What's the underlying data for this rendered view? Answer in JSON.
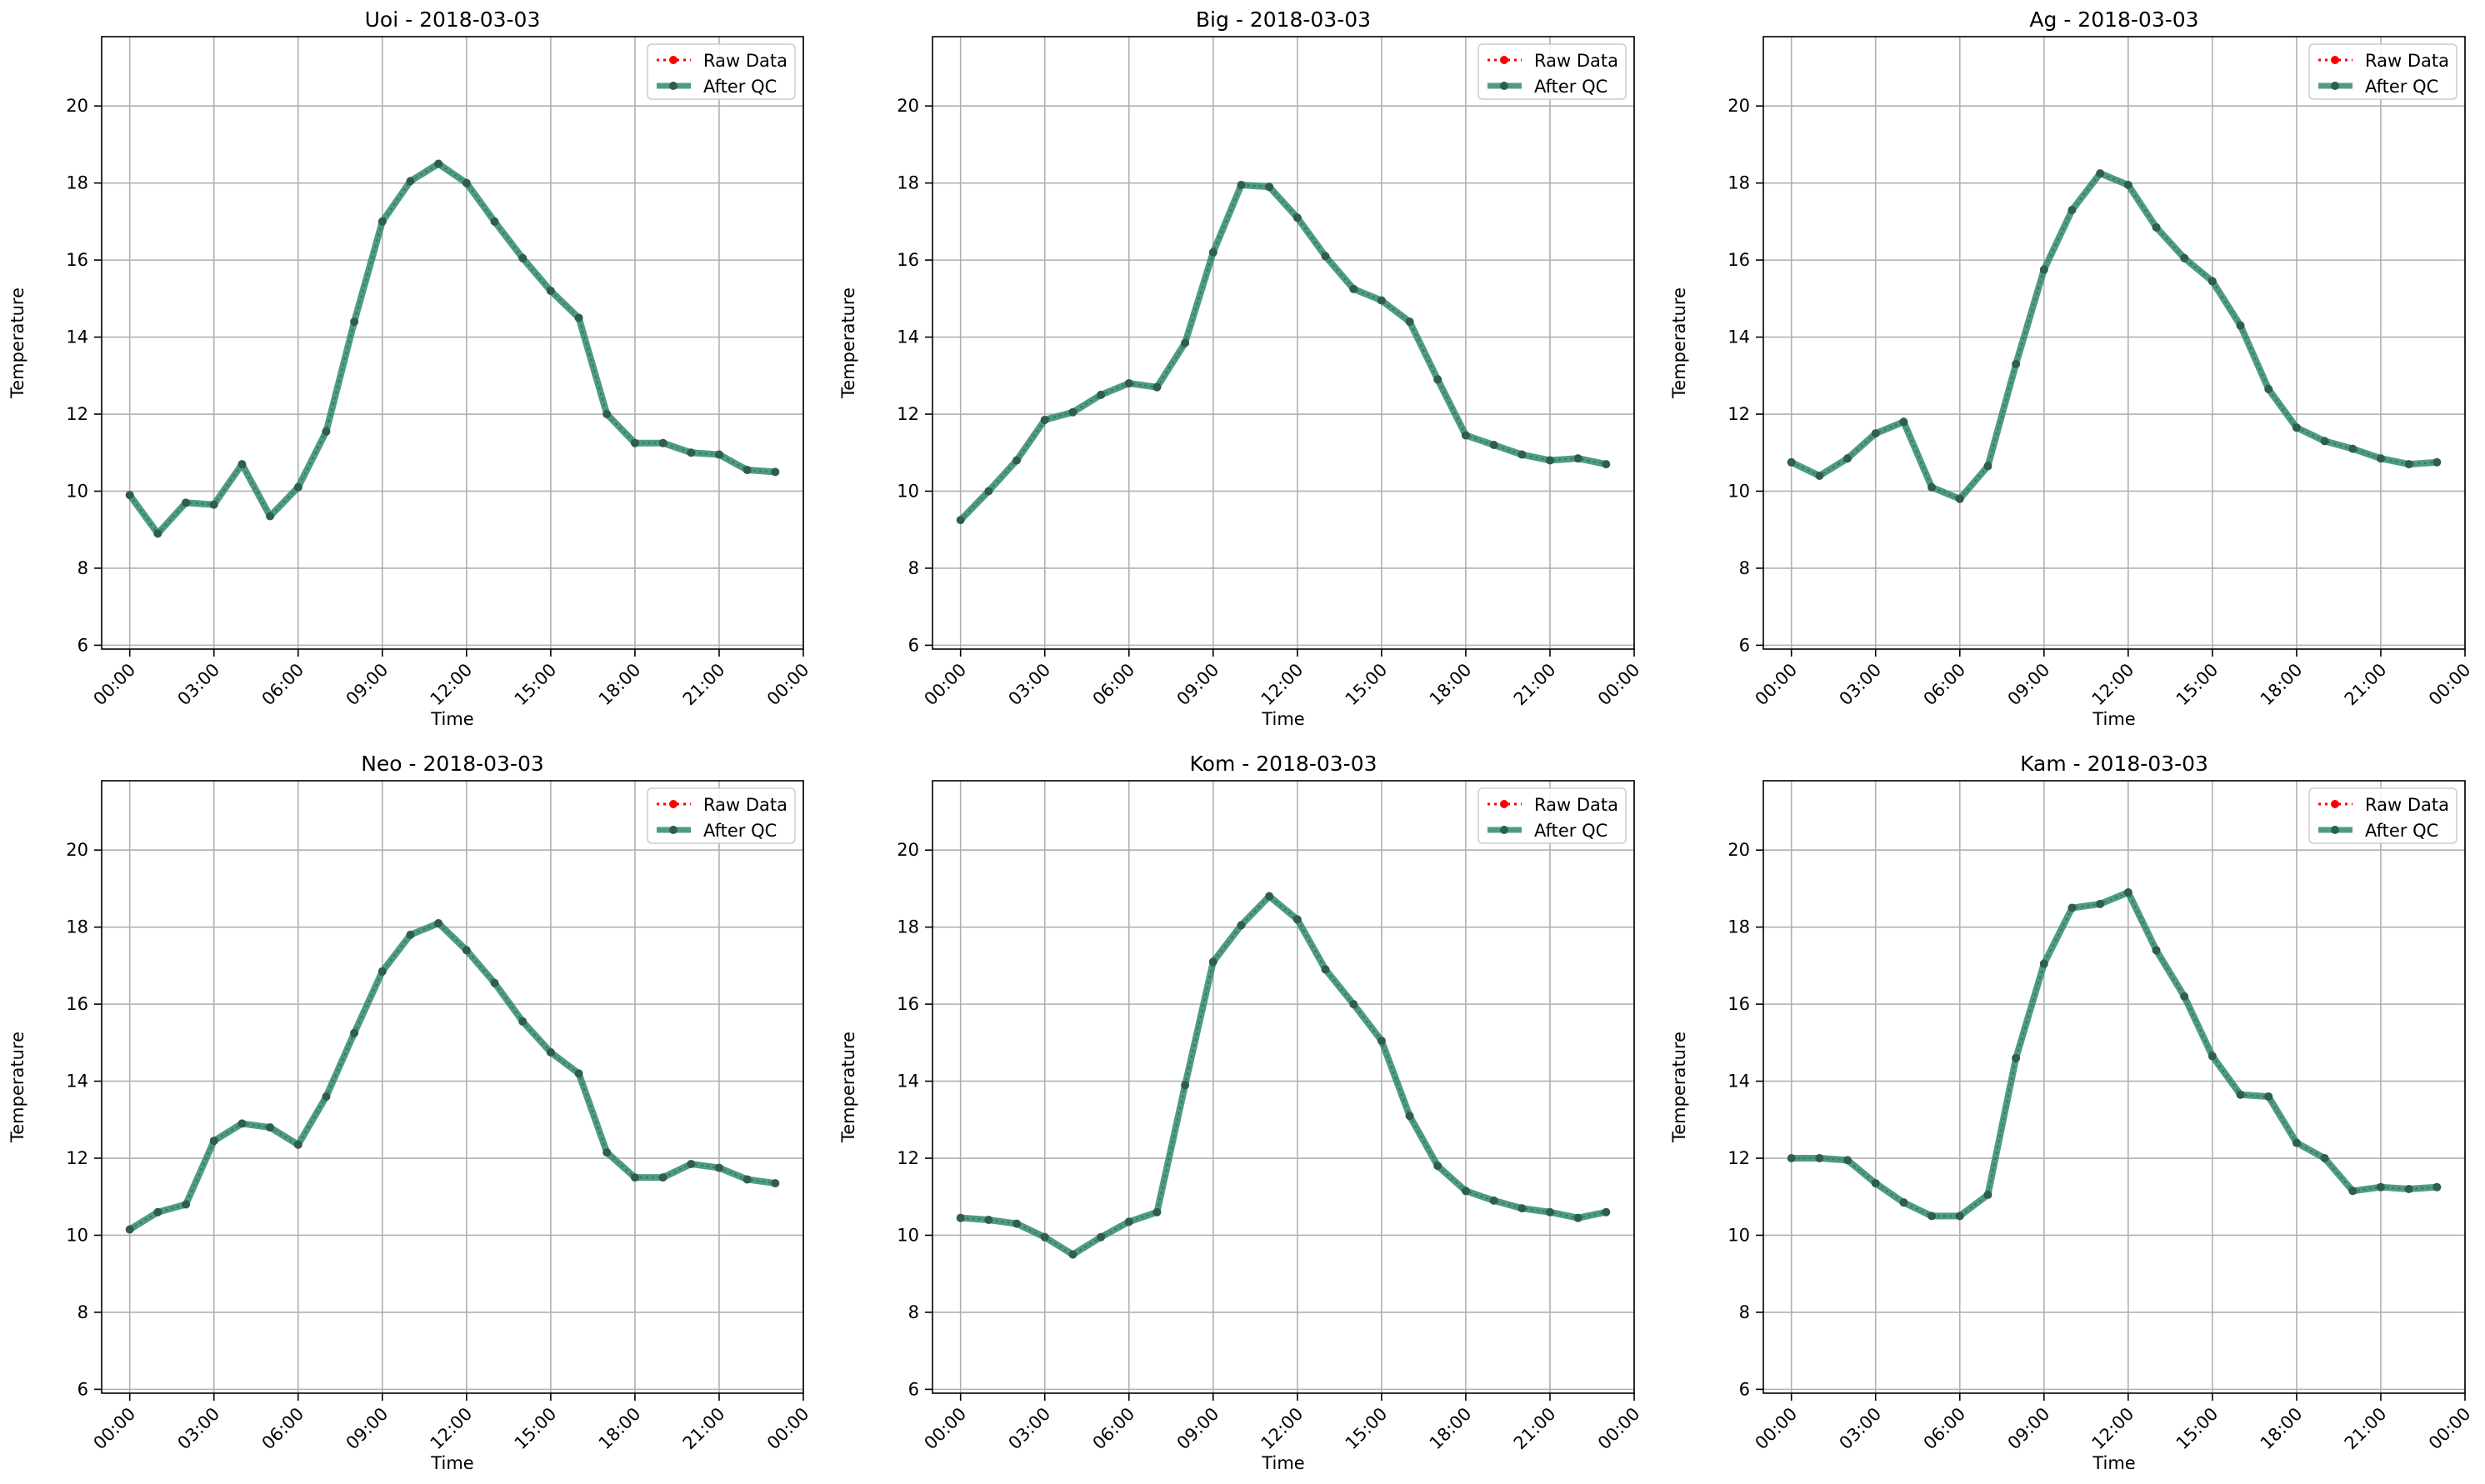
{
  "legend": {
    "raw_label": "Raw Data",
    "qc_label": "After QC",
    "raw_color": "#ff0000",
    "qc_color": "#2e8b6e"
  },
  "colors": {
    "grid": "#b0b0b0",
    "line": "#2e8b6e",
    "raw": "#ff0000",
    "marker": "#2f5d4e"
  },
  "chart_data": [
    {
      "type": "line",
      "title": "Uoi - 2018-03-03",
      "xlabel": "Time",
      "ylabel": "Temperature",
      "x_ticks": [
        "00:00",
        "03:00",
        "06:00",
        "09:00",
        "12:00",
        "15:00",
        "18:00",
        "21:00",
        "00:00"
      ],
      "y_ticks": [
        6,
        8,
        10,
        12,
        14,
        16,
        18,
        20
      ],
      "ylim": [
        5.9,
        21.8
      ],
      "grid": true,
      "legend_position": "upper right",
      "hours": [
        0,
        1,
        2,
        3,
        4,
        5,
        6,
        7,
        8,
        9,
        10,
        11,
        12,
        13,
        14,
        15,
        16,
        17,
        18,
        19,
        20,
        21,
        22,
        23
      ],
      "series": [
        {
          "name": "Raw Data",
          "values": [
            9.9,
            8.9,
            9.7,
            9.65,
            10.7,
            9.35,
            10.1,
            11.55,
            14.4,
            17.0,
            18.05,
            18.5,
            18.0,
            17.0,
            16.05,
            15.2,
            14.5,
            12.0,
            11.25,
            11.25,
            11.0,
            10.95,
            10.55,
            10.5
          ]
        },
        {
          "name": "After QC",
          "values": [
            9.9,
            8.9,
            9.7,
            9.65,
            10.7,
            9.35,
            10.1,
            11.55,
            14.4,
            17.0,
            18.05,
            18.5,
            18.0,
            17.0,
            16.05,
            15.2,
            14.5,
            12.0,
            11.25,
            11.25,
            11.0,
            10.95,
            10.55,
            10.5
          ]
        }
      ]
    },
    {
      "type": "line",
      "title": "Big - 2018-03-03",
      "xlabel": "Time",
      "ylabel": "Temperature",
      "x_ticks": [
        "00:00",
        "03:00",
        "06:00",
        "09:00",
        "12:00",
        "15:00",
        "18:00",
        "21:00",
        "00:00"
      ],
      "y_ticks": [
        6,
        8,
        10,
        12,
        14,
        16,
        18,
        20
      ],
      "ylim": [
        5.9,
        21.8
      ],
      "grid": true,
      "legend_position": "upper right",
      "hours": [
        0,
        1,
        2,
        3,
        4,
        5,
        6,
        7,
        8,
        9,
        10,
        11,
        12,
        13,
        14,
        15,
        16,
        17,
        18,
        19,
        20,
        21,
        22,
        23
      ],
      "series": [
        {
          "name": "Raw Data",
          "values": [
            9.25,
            10.0,
            10.8,
            11.85,
            12.05,
            12.5,
            12.8,
            12.7,
            13.85,
            16.2,
            17.95,
            17.9,
            17.1,
            16.1,
            15.25,
            14.95,
            14.4,
            12.9,
            11.45,
            11.2,
            10.95,
            10.8,
            10.85,
            10.7
          ]
        },
        {
          "name": "After QC",
          "values": [
            9.25,
            10.0,
            10.8,
            11.85,
            12.05,
            12.5,
            12.8,
            12.7,
            13.85,
            16.2,
            17.95,
            17.9,
            17.1,
            16.1,
            15.25,
            14.95,
            14.4,
            12.9,
            11.45,
            11.2,
            10.95,
            10.8,
            10.85,
            10.7
          ]
        }
      ]
    },
    {
      "type": "line",
      "title": "Ag - 2018-03-03",
      "xlabel": "Time",
      "ylabel": "Temperature",
      "x_ticks": [
        "00:00",
        "03:00",
        "06:00",
        "09:00",
        "12:00",
        "15:00",
        "18:00",
        "21:00",
        "00:00"
      ],
      "y_ticks": [
        6,
        8,
        10,
        12,
        14,
        16,
        18,
        20
      ],
      "ylim": [
        5.9,
        21.8
      ],
      "grid": true,
      "legend_position": "upper right",
      "hours": [
        0,
        1,
        2,
        3,
        4,
        5,
        6,
        7,
        8,
        9,
        10,
        11,
        12,
        13,
        14,
        15,
        16,
        17,
        18,
        19,
        20,
        21,
        22,
        23
      ],
      "series": [
        {
          "name": "Raw Data",
          "values": [
            10.75,
            10.4,
            10.85,
            11.5,
            11.8,
            10.1,
            9.8,
            10.65,
            13.3,
            15.75,
            17.3,
            18.25,
            17.95,
            16.85,
            16.05,
            15.45,
            14.3,
            12.65,
            11.65,
            11.3,
            11.1,
            10.85,
            10.7,
            10.75
          ]
        },
        {
          "name": "After QC",
          "values": [
            10.75,
            10.4,
            10.85,
            11.5,
            11.8,
            10.1,
            9.8,
            10.65,
            13.3,
            15.75,
            17.3,
            18.25,
            17.95,
            16.85,
            16.05,
            15.45,
            14.3,
            12.65,
            11.65,
            11.3,
            11.1,
            10.85,
            10.7,
            10.75
          ]
        }
      ]
    },
    {
      "type": "line",
      "title": "Neo - 2018-03-03",
      "xlabel": "Time",
      "ylabel": "Temperature",
      "x_ticks": [
        "00:00",
        "03:00",
        "06:00",
        "09:00",
        "12:00",
        "15:00",
        "18:00",
        "21:00",
        "00:00"
      ],
      "y_ticks": [
        6,
        8,
        10,
        12,
        14,
        16,
        18,
        20
      ],
      "ylim": [
        5.9,
        21.8
      ],
      "grid": true,
      "legend_position": "upper right",
      "hours": [
        0,
        1,
        2,
        3,
        4,
        5,
        6,
        7,
        8,
        9,
        10,
        11,
        12,
        13,
        14,
        15,
        16,
        17,
        18,
        19,
        20,
        21,
        22,
        23
      ],
      "series": [
        {
          "name": "Raw Data",
          "values": [
            10.15,
            10.6,
            10.8,
            12.45,
            12.9,
            12.8,
            12.35,
            13.6,
            15.25,
            16.85,
            17.8,
            18.1,
            17.4,
            16.55,
            15.55,
            14.75,
            14.2,
            12.15,
            11.5,
            11.5,
            11.85,
            11.75,
            11.45,
            11.35
          ]
        },
        {
          "name": "After QC",
          "values": [
            10.15,
            10.6,
            10.8,
            12.45,
            12.9,
            12.8,
            12.35,
            13.6,
            15.25,
            16.85,
            17.8,
            18.1,
            17.4,
            16.55,
            15.55,
            14.75,
            14.2,
            12.15,
            11.5,
            11.5,
            11.85,
            11.75,
            11.45,
            11.35
          ]
        }
      ]
    },
    {
      "type": "line",
      "title": "Kom - 2018-03-03",
      "xlabel": "Time",
      "ylabel": "Temperature",
      "x_ticks": [
        "00:00",
        "03:00",
        "06:00",
        "09:00",
        "12:00",
        "15:00",
        "18:00",
        "21:00",
        "00:00"
      ],
      "y_ticks": [
        6,
        8,
        10,
        12,
        14,
        16,
        18,
        20
      ],
      "ylim": [
        5.9,
        21.8
      ],
      "grid": true,
      "legend_position": "upper right",
      "hours": [
        0,
        1,
        2,
        3,
        4,
        5,
        6,
        7,
        8,
        9,
        10,
        11,
        12,
        13,
        14,
        15,
        16,
        17,
        18,
        19,
        20,
        21,
        22,
        23
      ],
      "series": [
        {
          "name": "Raw Data",
          "values": [
            10.45,
            10.4,
            10.3,
            9.95,
            9.5,
            9.95,
            10.35,
            10.6,
            13.9,
            17.1,
            18.05,
            18.8,
            18.2,
            16.9,
            16.0,
            15.05,
            13.1,
            11.8,
            11.15,
            10.9,
            10.7,
            10.6,
            10.45,
            10.6
          ]
        },
        {
          "name": "After QC",
          "values": [
            10.45,
            10.4,
            10.3,
            9.95,
            9.5,
            9.95,
            10.35,
            10.6,
            13.9,
            17.1,
            18.05,
            18.8,
            18.2,
            16.9,
            16.0,
            15.05,
            13.1,
            11.8,
            11.15,
            10.9,
            10.7,
            10.6,
            10.45,
            10.6
          ]
        }
      ]
    },
    {
      "type": "line",
      "title": "Kam - 2018-03-03",
      "xlabel": "Time",
      "ylabel": "Temperature",
      "x_ticks": [
        "00:00",
        "03:00",
        "06:00",
        "09:00",
        "12:00",
        "15:00",
        "18:00",
        "21:00",
        "00:00"
      ],
      "y_ticks": [
        6,
        8,
        10,
        12,
        14,
        16,
        18,
        20
      ],
      "ylim": [
        5.9,
        21.8
      ],
      "grid": true,
      "legend_position": "upper right",
      "hours": [
        0,
        1,
        2,
        3,
        4,
        5,
        6,
        7,
        8,
        9,
        10,
        11,
        12,
        13,
        14,
        15,
        16,
        17,
        18,
        19,
        20,
        21,
        22,
        23
      ],
      "series": [
        {
          "name": "Raw Data",
          "values": [
            12.0,
            12.0,
            11.95,
            11.35,
            10.85,
            10.5,
            10.5,
            11.05,
            14.6,
            17.05,
            18.5,
            18.6,
            18.9,
            17.4,
            16.2,
            14.65,
            13.65,
            13.6,
            12.4,
            12.0,
            11.15,
            11.25,
            11.2,
            11.25
          ]
        },
        {
          "name": "After QC",
          "values": [
            12.0,
            12.0,
            11.95,
            11.35,
            10.85,
            10.5,
            10.5,
            11.05,
            14.6,
            17.05,
            18.5,
            18.6,
            18.9,
            17.4,
            16.2,
            14.65,
            13.65,
            13.6,
            12.4,
            12.0,
            11.15,
            11.25,
            11.2,
            11.25
          ]
        }
      ]
    }
  ]
}
